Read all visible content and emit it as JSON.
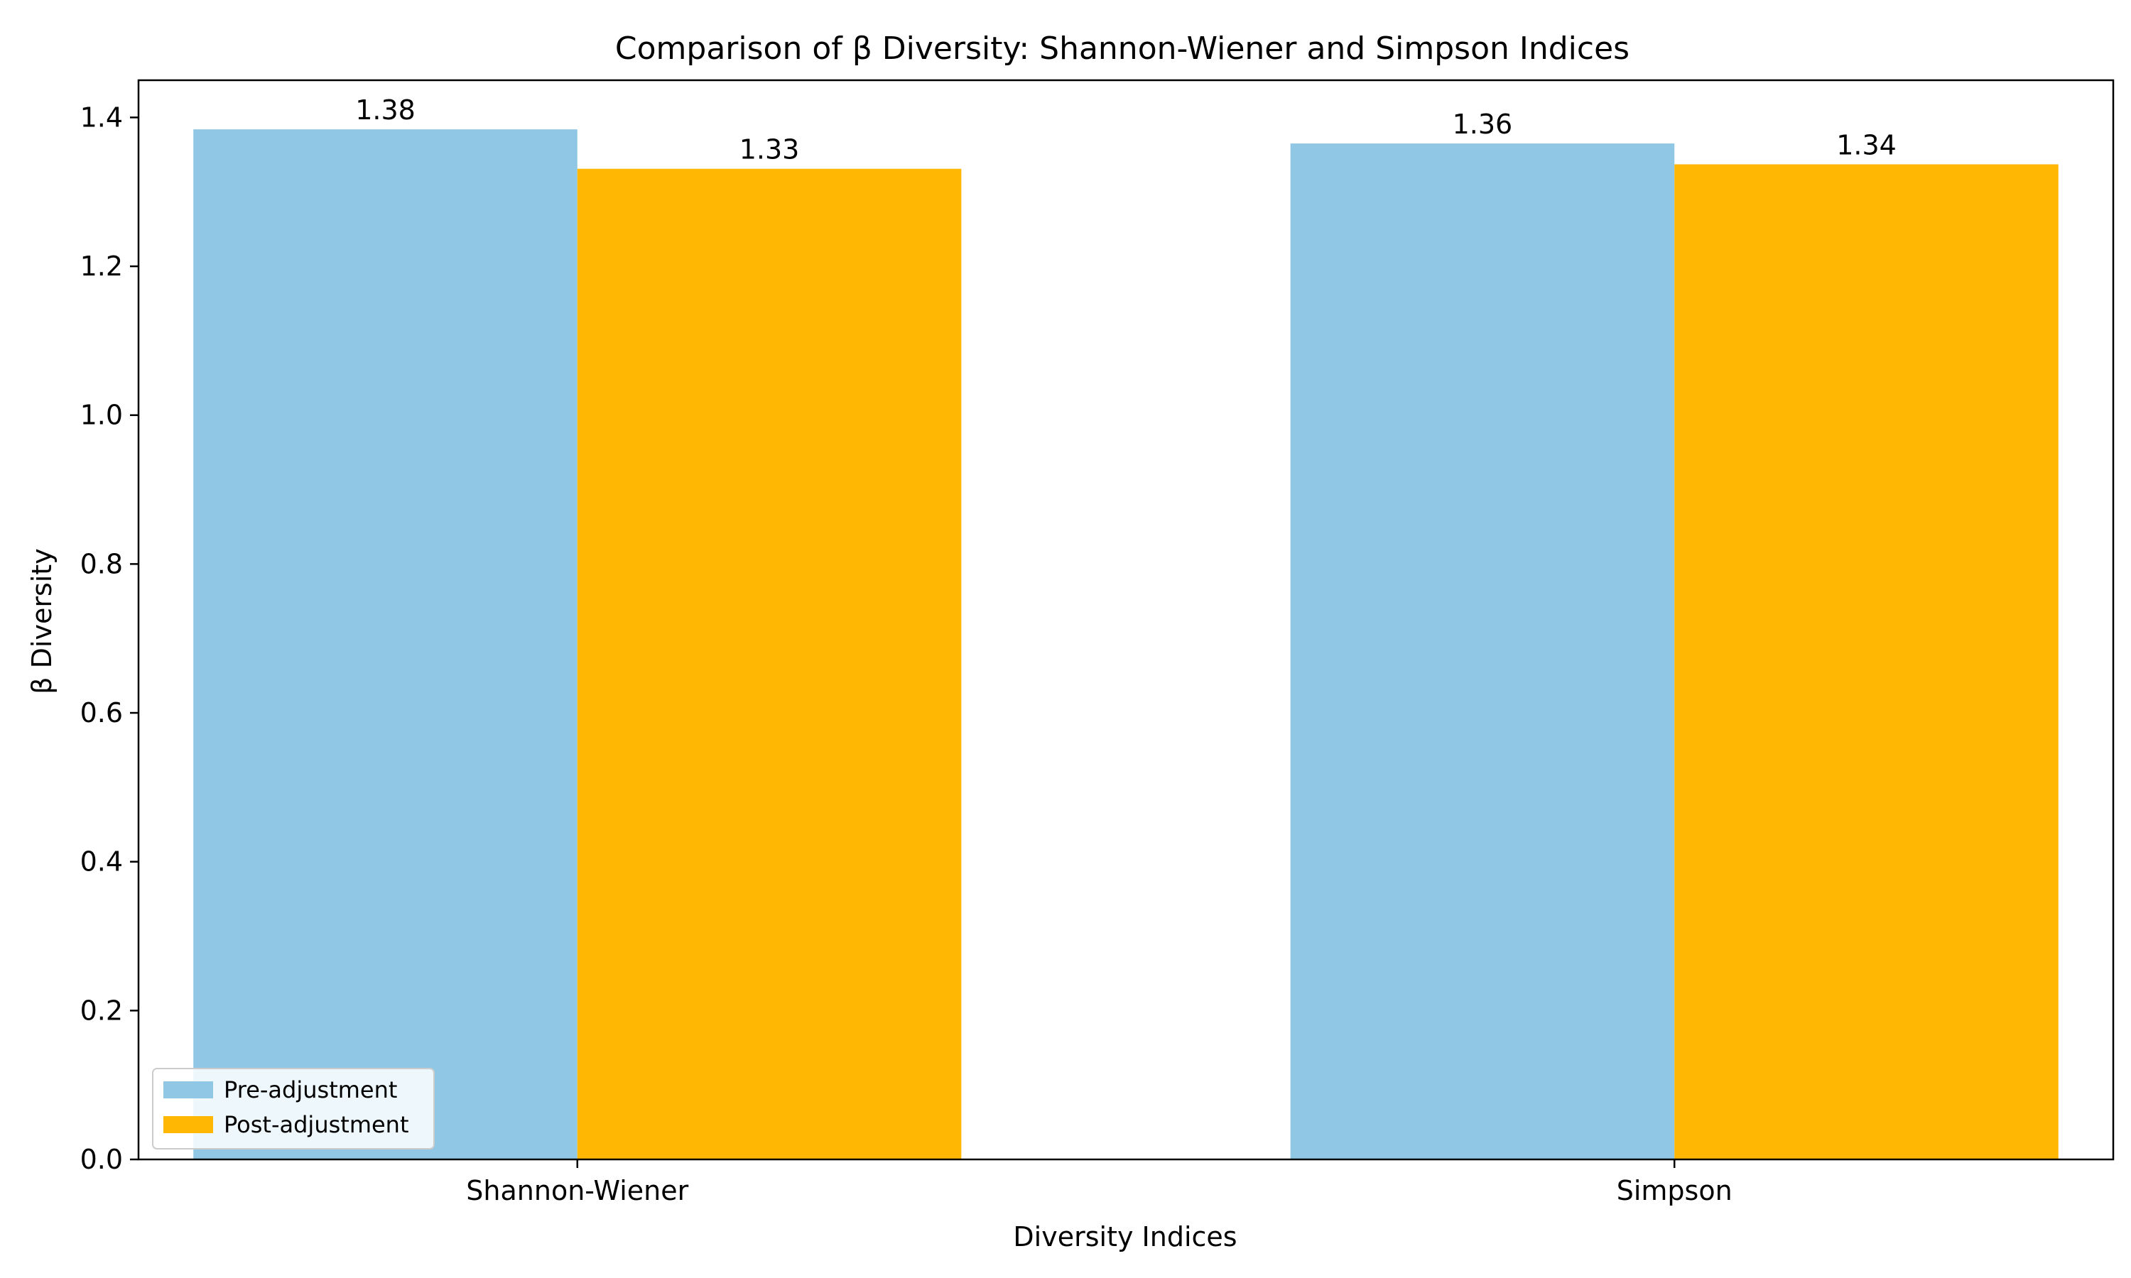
{
  "chart_data": {
    "type": "bar",
    "title": "Comparison of β Diversity: Shannon-Wiener and Simpson Indices",
    "xlabel": "Diversity Indices",
    "ylabel": "β Diversity",
    "categories": [
      "Shannon-Wiener",
      "Simpson"
    ],
    "series": [
      {
        "name": "Pre-adjustment",
        "values": [
          1.384,
          1.365
        ],
        "labels": [
          "1.38",
          "1.36"
        ],
        "color": "#8fc7e5"
      },
      {
        "name": "Post-adjustment",
        "values": [
          1.331,
          1.337
        ],
        "labels": [
          "1.33",
          "1.34"
        ],
        "color": "#ffb703"
      }
    ],
    "ylim": [
      0,
      1.45
    ],
    "yticks": [
      0.0,
      0.2,
      0.4,
      0.6,
      0.8,
      1.0,
      1.2,
      1.4
    ],
    "ytick_labels": [
      "0.0",
      "0.2",
      "0.4",
      "0.6",
      "0.8",
      "1.0",
      "1.2",
      "1.4"
    ],
    "grid": false,
    "legend_position": "lower-left"
  }
}
